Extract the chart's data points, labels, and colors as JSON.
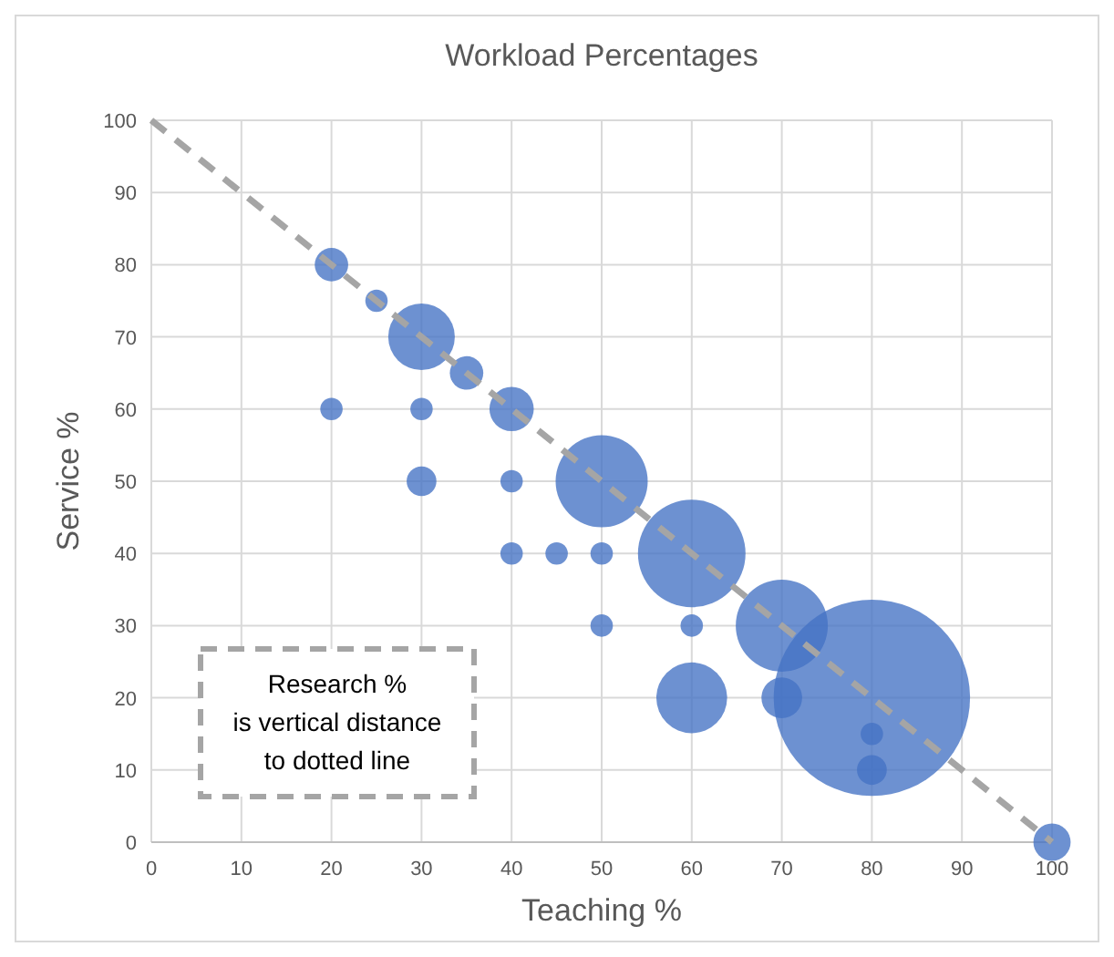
{
  "chart_data": {
    "type": "bubble",
    "title": "Workload Percentages",
    "xlabel": "Teaching %",
    "ylabel": "Service %",
    "xlim": [
      0,
      100
    ],
    "xticks": [
      0,
      10,
      20,
      30,
      40,
      50,
      60,
      70,
      80,
      90,
      100
    ],
    "ylim": [
      0,
      100
    ],
    "yticks": [
      0,
      10,
      20,
      30,
      40,
      50,
      60,
      70,
      80,
      90,
      100
    ],
    "grid": true,
    "series": [
      {
        "color": "#4472c4",
        "x": [
          20,
          25,
          30,
          35,
          40,
          20,
          30,
          30,
          40,
          50,
          40,
          45,
          50,
          60,
          50,
          60,
          70,
          60,
          70,
          80,
          80,
          80,
          100
        ],
        "values": [
          80,
          75,
          70,
          65,
          60,
          60,
          60,
          50,
          50,
          50,
          40,
          40,
          40,
          40,
          30,
          30,
          30,
          20,
          20,
          20,
          15,
          10,
          0
        ],
        "sizes": [
          0.029,
          0.013,
          0.115,
          0.029,
          0.051,
          0.013,
          0.013,
          0.023,
          0.013,
          0.22,
          0.013,
          0.013,
          0.013,
          0.3,
          0.013,
          0.013,
          0.22,
          0.13,
          0.043,
          1,
          0.013,
          0.023,
          0.036
        ]
      },
      {
        "type": "line",
        "color": "#a5a5a5",
        "line_style": "dashed",
        "marker": "none",
        "x": [
          0,
          100
        ],
        "values": [
          100,
          0
        ]
      }
    ],
    "annotations": [
      "Research %\nis vertical distance\nto dotted line"
    ]
  }
}
